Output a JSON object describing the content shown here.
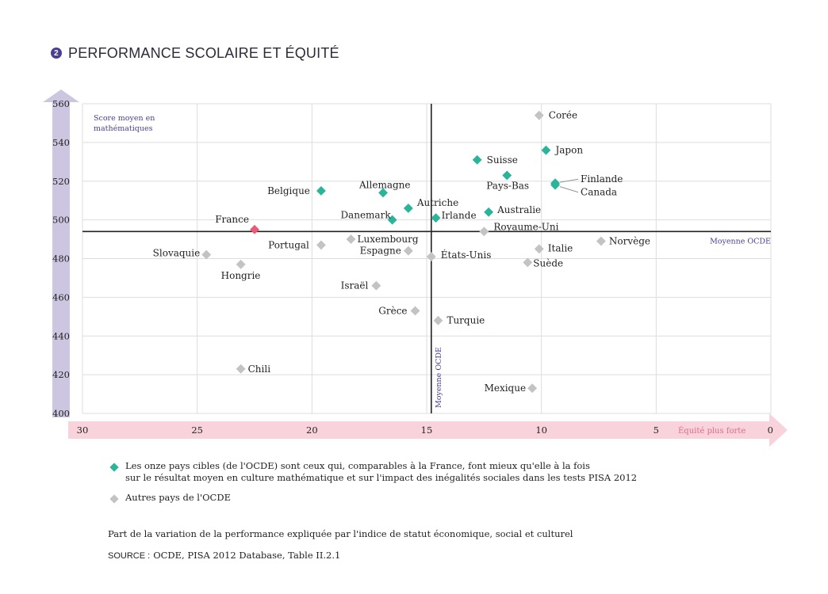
{
  "header": {
    "number": "2",
    "title": "PERFORMANCE SCOLAIRE ET ÉQUITÉ"
  },
  "colors": {
    "target": "#2ab59b",
    "other": "#c3c3c3",
    "france": "#e85a78",
    "y_arrow": "#cdc6e0",
    "x_arrow": "#f8d3dc",
    "axis_text_purple": "#4b3d8f",
    "axis_text_pink": "#e06b8b",
    "grid": "#dddddd",
    "reference_line": "#222222"
  },
  "chart_data": {
    "type": "scatter",
    "title": "PERFORMANCE SCOLAIRE ET ÉQUITÉ",
    "ylabel": "Score moyen en mathématiques",
    "xlabel": "Part de la variation de la performance expliquée par l'indice de statut économique, social et culturel",
    "x_direction_label": "Équité plus forte",
    "xlim": [
      30,
      0
    ],
    "ylim": [
      400,
      560
    ],
    "x_ticks": [
      30,
      25,
      20,
      15,
      10,
      5,
      0
    ],
    "y_ticks": [
      400,
      420,
      440,
      460,
      480,
      500,
      520,
      540,
      560
    ],
    "grid": true,
    "reference_lines": {
      "x": {
        "value": 14.8,
        "label": "Moyenne OCDE"
      },
      "y": {
        "value": 494,
        "label": "Moyenne OCDE"
      }
    },
    "series": [
      {
        "name": "target",
        "label": "Les onze pays cibles (de l'OCDE) sont ceux qui, comparables à la France, font mieux qu'elle à la fois sur le résultat moyen en culture mathématique et sur l'impact des inégalités sociales dans les tests PISA 2012",
        "points": [
          {
            "label": "Japon",
            "x": 9.8,
            "y": 536
          },
          {
            "label": "Suisse",
            "x": 12.8,
            "y": 531
          },
          {
            "label": "Pays-Bas",
            "x": 11.5,
            "y": 523
          },
          {
            "label": "Finlande",
            "x": 9.4,
            "y": 519
          },
          {
            "label": "Canada",
            "x": 9.4,
            "y": 518
          },
          {
            "label": "Belgique",
            "x": 19.6,
            "y": 515
          },
          {
            "label": "Allemagne",
            "x": 16.9,
            "y": 514
          },
          {
            "label": "Autriche",
            "x": 15.8,
            "y": 506
          },
          {
            "label": "Australie",
            "x": 12.3,
            "y": 504
          },
          {
            "label": "Irlande",
            "x": 14.6,
            "y": 501
          },
          {
            "label": "Danemark",
            "x": 16.5,
            "y": 500
          }
        ]
      },
      {
        "name": "france",
        "label": "France",
        "points": [
          {
            "label": "France",
            "x": 22.5,
            "y": 495
          }
        ]
      },
      {
        "name": "other",
        "label": "Autres pays de l'OCDE",
        "points": [
          {
            "label": "Corée",
            "x": 10.1,
            "y": 554
          },
          {
            "label": "Royaume-Uni",
            "x": 12.5,
            "y": 494
          },
          {
            "label": "Norvège",
            "x": 7.4,
            "y": 489
          },
          {
            "label": "Luxembourg",
            "x": 18.3,
            "y": 490
          },
          {
            "label": "Portugal",
            "x": 19.6,
            "y": 487
          },
          {
            "label": "Italie",
            "x": 10.1,
            "y": 485
          },
          {
            "label": "Espagne",
            "x": 15.8,
            "y": 484
          },
          {
            "label": "États-Unis",
            "x": 14.8,
            "y": 481
          },
          {
            "label": "Slovaquie",
            "x": 24.6,
            "y": 482
          },
          {
            "label": "Suède",
            "x": 10.6,
            "y": 478
          },
          {
            "label": "Hongrie",
            "x": 23.1,
            "y": 477
          },
          {
            "label": "Israël",
            "x": 17.2,
            "y": 466
          },
          {
            "label": "Grèce",
            "x": 15.5,
            "y": 453
          },
          {
            "label": "Turquie",
            "x": 14.5,
            "y": 448
          },
          {
            "label": "Chili",
            "x": 23.1,
            "y": 423
          },
          {
            "label": "Mexique",
            "x": 10.4,
            "y": 413
          }
        ]
      }
    ]
  },
  "legend": {
    "target_line1": "Les onze pays cibles (de l'OCDE) sont ceux qui, comparables à la France, font mieux qu'elle à la fois",
    "target_line2": "sur le résultat moyen en culture mathématique et sur l'impact des inégalités sociales dans les tests PISA 2012",
    "other": "Autres pays de l'OCDE"
  },
  "footer": {
    "x_caption": "Part de la variation de la performance expliquée par l'indice de statut économique, social et culturel",
    "source_label": "SOURCE :",
    "source_text": "OCDE, PISA 2012 Database, Table II.2.1"
  }
}
